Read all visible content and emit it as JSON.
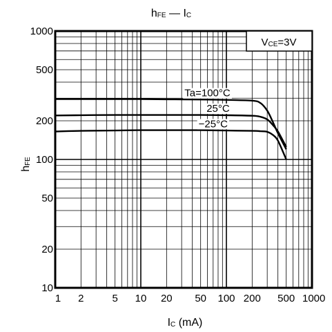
{
  "chart_data": {
    "type": "line",
    "title": "hFE — IC",
    "xlabel": "IC (mA)",
    "ylabel": "hFE",
    "xscale": "log",
    "yscale": "log",
    "xlim": [
      1,
      1000
    ],
    "ylim": [
      10,
      1000
    ],
    "grid": true,
    "x_ticks": [
      "1",
      "2",
      "5",
      "10",
      "20",
      "50",
      "100",
      "200",
      "500",
      "1000"
    ],
    "y_ticks": [
      "1000",
      "500",
      "200",
      "100",
      "50",
      "20",
      "10"
    ],
    "condition": "VCE=3V",
    "series": [
      {
        "name": "Ta=100°C",
        "x": [
          1,
          2,
          5,
          10,
          20,
          50,
          100,
          200,
          250,
          300,
          350,
          400,
          500
        ],
        "y": [
          295,
          295,
          295,
          295,
          294,
          293,
          291,
          287,
          275,
          240,
          195,
          160,
          120
        ]
      },
      {
        "name": "25°C",
        "x": [
          1,
          2,
          5,
          10,
          20,
          50,
          100,
          200,
          250,
          300,
          350,
          400,
          500
        ],
        "y": [
          220,
          221,
          222,
          222,
          222,
          222,
          221,
          219,
          215,
          205,
          185,
          165,
          125
        ]
      },
      {
        "name": "−25°C",
        "x": [
          1,
          2,
          5,
          10,
          20,
          50,
          100,
          200,
          250,
          300,
          350,
          400,
          500
        ],
        "y": [
          165,
          167,
          168,
          169,
          169,
          169,
          168,
          167,
          166,
          164,
          155,
          140,
          100
        ]
      }
    ]
  }
}
